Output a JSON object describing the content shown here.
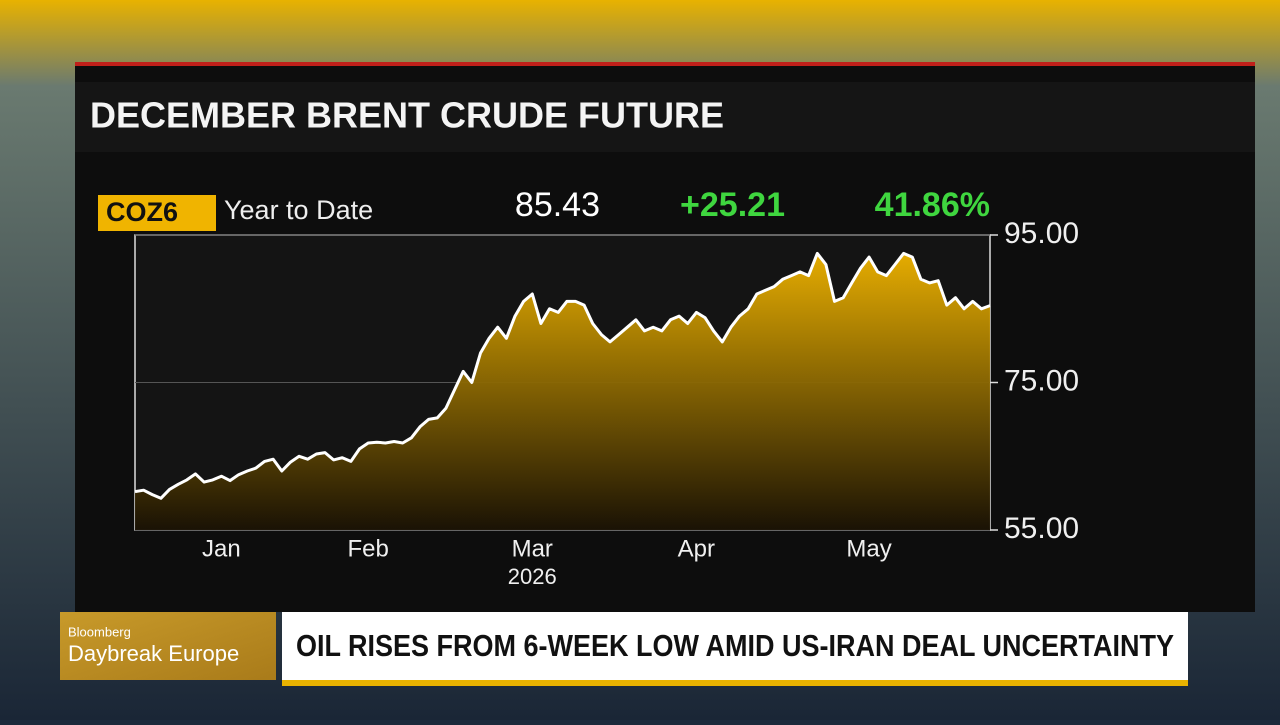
{
  "chart_data": {
    "type": "area",
    "title": "DECEMBER BRENT CRUDE FUTURE",
    "ticker": "COZ6",
    "period": "Year to Date",
    "last": 85.43,
    "change": "+25.21",
    "change_pct": "41.86%",
    "categories": [
      null,
      null,
      null,
      null,
      null,
      null,
      null,
      null,
      null,
      null,
      "Jan",
      null,
      null,
      null,
      null,
      null,
      null,
      null,
      null,
      null,
      null,
      null,
      null,
      null,
      null,
      null,
      null,
      "Feb",
      null,
      null,
      null,
      null,
      null,
      null,
      null,
      null,
      null,
      null,
      null,
      null,
      null,
      null,
      null,
      null,
      null,
      null,
      "Mar",
      null,
      null,
      null,
      null,
      null,
      null,
      null,
      null,
      null,
      null,
      null,
      null,
      null,
      null,
      null,
      null,
      null,
      null,
      "Apr",
      null,
      null,
      null,
      null,
      null,
      null,
      null,
      null,
      null,
      null,
      null,
      null,
      null,
      null,
      null,
      null,
      null,
      null,
      null,
      "May",
      null,
      null,
      null,
      null,
      null,
      null,
      null,
      null,
      null,
      null,
      null,
      null,
      null,
      null
    ],
    "year_label": "2026",
    "values": [
      60.2,
      60.4,
      59.8,
      59.3,
      60.5,
      61.2,
      61.8,
      62.6,
      61.5,
      61.8,
      62.3,
      61.7,
      62.5,
      63.0,
      63.4,
      64.3,
      64.6,
      63.0,
      64.2,
      65.0,
      64.6,
      65.3,
      65.5,
      64.5,
      64.8,
      64.3,
      66.0,
      66.8,
      66.9,
      66.8,
      67.0,
      66.8,
      67.5,
      69.0,
      70.0,
      70.2,
      71.5,
      74.0,
      76.5,
      75.0,
      79.0,
      81.0,
      82.5,
      81.0,
      84.0,
      86.0,
      87.0,
      83.0,
      85.0,
      84.5,
      86.0,
      86.0,
      85.5,
      83.0,
      81.5,
      80.5,
      81.5,
      82.5,
      83.5,
      82.0,
      82.5,
      82.0,
      83.5,
      84.0,
      83.0,
      84.5,
      83.8,
      82.0,
      80.5,
      82.5,
      84.0,
      85.0,
      87.0,
      87.5,
      88.0,
      89.0,
      89.5,
      90.0,
      89.5,
      92.5,
      91.0,
      86.0,
      86.5,
      88.5,
      90.5,
      92.0,
      90.0,
      89.5,
      91.0,
      92.5,
      92.0,
      89.0,
      88.5,
      88.8,
      85.5,
      86.5,
      85.0,
      86.0,
      85.0,
      85.43
    ],
    "color": "#f0b400",
    "line_color": "#ffffff",
    "ylim": [
      55,
      95
    ],
    "yticks": [
      {
        "value": 55,
        "label": "55.00"
      },
      {
        "value": 75,
        "label": "75.00"
      },
      {
        "value": 95,
        "label": "95.00"
      }
    ],
    "grid": true
  },
  "lower_third": {
    "network": "Bloomberg",
    "show": "Daybreak Europe",
    "headline": "OIL RISES FROM 6-WEEK LOW AMID US-IRAN DEAL UNCERTAINTY"
  }
}
